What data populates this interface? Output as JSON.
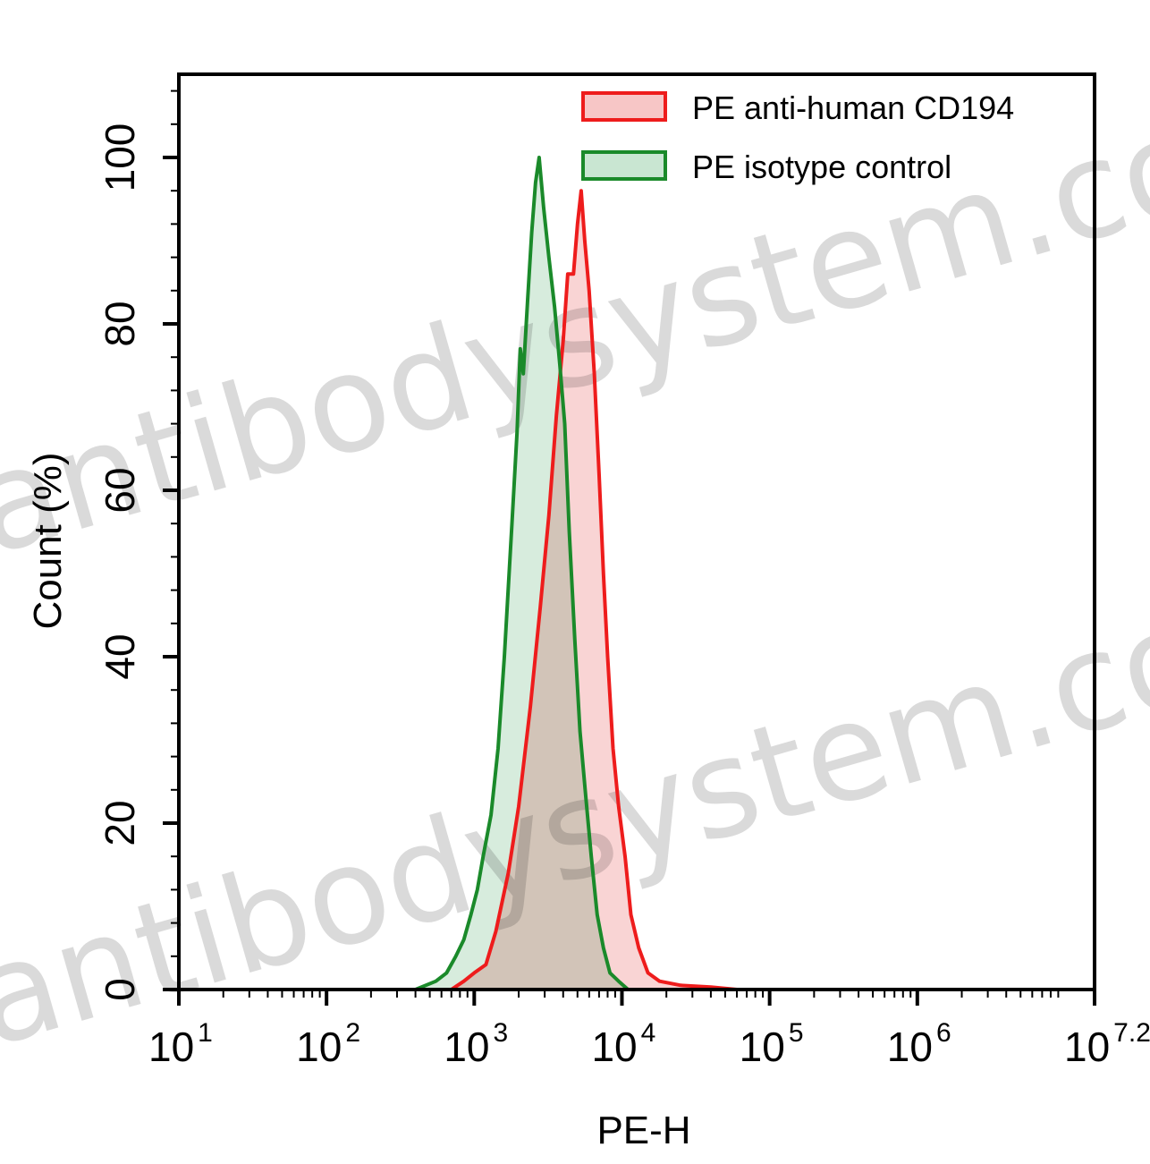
{
  "chart_data": {
    "type": "area",
    "xlabel": "PE-H",
    "ylabel": "Count  (%)",
    "x_scale": "log",
    "xlim": [
      10,
      15848932
    ],
    "ylim": [
      0,
      110
    ],
    "x_tick_labels": [
      {
        "base": "10",
        "exp": "1"
      },
      {
        "base": "10",
        "exp": "2"
      },
      {
        "base": "10",
        "exp": "3"
      },
      {
        "base": "10",
        "exp": "4"
      },
      {
        "base": "10",
        "exp": "5"
      },
      {
        "base": "10",
        "exp": "6"
      },
      {
        "base": "10",
        "exp": "7.2"
      }
    ],
    "y_ticks": [
      "0",
      "20",
      "40",
      "60",
      "80",
      "100"
    ],
    "legend": {
      "placement": "top-right"
    },
    "watermark": [
      "antibodysystem.com",
      "antibodysystem.com"
    ],
    "series": [
      {
        "name": "PE anti-human CD194",
        "color": "#ee1c1c",
        "fill": "#f7c6c6",
        "points": [
          [
            700,
            0
          ],
          [
            850,
            1
          ],
          [
            1000,
            2
          ],
          [
            1200,
            3
          ],
          [
            1400,
            7
          ],
          [
            1700,
            14
          ],
          [
            2000,
            22
          ],
          [
            2400,
            34
          ],
          [
            2800,
            46
          ],
          [
            3200,
            57
          ],
          [
            3600,
            69
          ],
          [
            4000,
            78
          ],
          [
            4300,
            86
          ],
          [
            4700,
            86
          ],
          [
            5000,
            92
          ],
          [
            5300,
            96
          ],
          [
            5600,
            90
          ],
          [
            6000,
            84
          ],
          [
            6500,
            74
          ],
          [
            7000,
            62
          ],
          [
            7500,
            50
          ],
          [
            8000,
            40
          ],
          [
            8700,
            29
          ],
          [
            9500,
            22
          ],
          [
            10500,
            16
          ],
          [
            11500,
            9
          ],
          [
            13000,
            5
          ],
          [
            15000,
            2
          ],
          [
            18000,
            1
          ],
          [
            25000,
            0.5
          ],
          [
            40000,
            0.3
          ],
          [
            60000,
            0
          ]
        ]
      },
      {
        "name": "PE isotype control",
        "color": "#1a8a2a",
        "fill": "#c9e6d2",
        "points": [
          [
            400,
            0
          ],
          [
            550,
            1
          ],
          [
            650,
            2
          ],
          [
            750,
            4
          ],
          [
            850,
            6
          ],
          [
            950,
            9
          ],
          [
            1050,
            12
          ],
          [
            1150,
            16
          ],
          [
            1300,
            21
          ],
          [
            1450,
            29
          ],
          [
            1600,
            40
          ],
          [
            1800,
            56
          ],
          [
            1950,
            67
          ],
          [
            2050,
            77
          ],
          [
            2150,
            74
          ],
          [
            2300,
            83
          ],
          [
            2450,
            91
          ],
          [
            2600,
            97
          ],
          [
            2750,
            100
          ],
          [
            2950,
            94
          ],
          [
            3200,
            88
          ],
          [
            3500,
            82
          ],
          [
            3800,
            75
          ],
          [
            4100,
            68
          ],
          [
            4400,
            55
          ],
          [
            4800,
            42
          ],
          [
            5200,
            31
          ],
          [
            5700,
            23
          ],
          [
            6200,
            16
          ],
          [
            6800,
            9
          ],
          [
            7500,
            5
          ],
          [
            8300,
            2
          ],
          [
            9500,
            1
          ],
          [
            11000,
            0
          ]
        ]
      }
    ]
  }
}
